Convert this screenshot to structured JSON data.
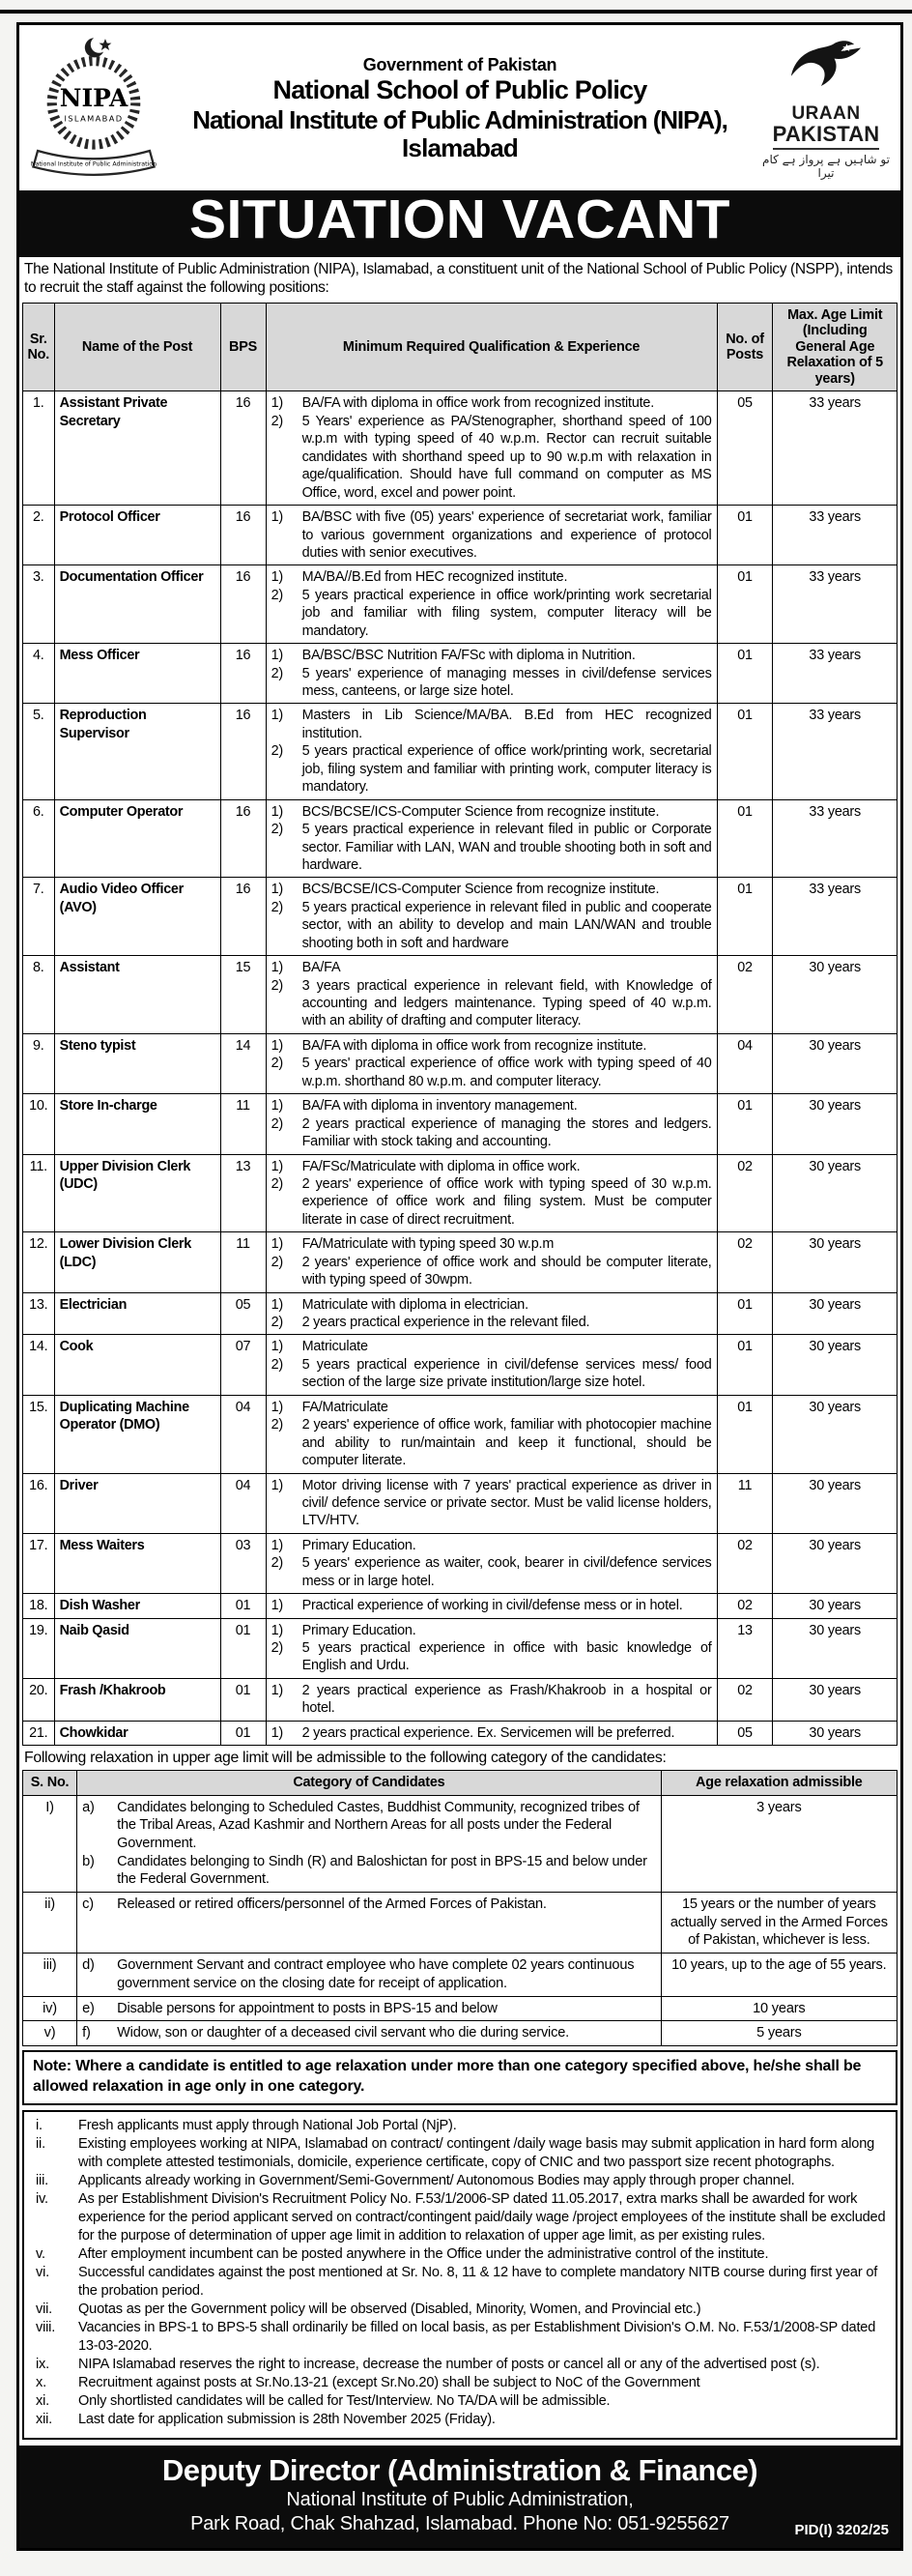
{
  "header": {
    "govt": "Government of Pakistan",
    "school": "National School of Public Policy",
    "institute_line1": "National Institute of Public Administration (NIPA),",
    "institute_line2": "Islamabad",
    "crest": {
      "acronym": "NIPA",
      "city": "ISLAMABAD",
      "ribbon": "National Institute of Public Administration"
    },
    "uraan": {
      "word1": "URAAN",
      "word2": "PAKISTAN",
      "urdu_tagline": "تو شاہیں ہے پرواز ہے کام تیرا"
    }
  },
  "banner": "SITUATION VACANT",
  "intro": "The National Institute of Public Administration (NIPA), Islamabad, a constituent unit of the National School of Public Policy (NSPP), intends to recruit the  staff against the following positions:",
  "jobs_table": {
    "headers": [
      "Sr. No.",
      "Name of the Post",
      "BPS",
      "Minimum Required Qualification & Experience",
      "No. of Posts",
      "Max. Age Limit (Including General Age Relaxation of 5 years)"
    ],
    "rows": [
      {
        "sr": "1.",
        "post": "Assistant Private Secretary",
        "bps": "16",
        "quals": [
          "BA/FA with diploma in office work from recognized institute.",
          "5 Years' experience as PA/Stenographer, shorthand speed of 100 w.p.m with typing speed of 40 w.p.m. Rector can recruit suitable candidates with shorthand speed up to 90 w.p.m with relaxation in age/qualification. Should have full command on computer as MS Office, word, excel and power point."
        ],
        "posts": "05",
        "age": "33 years"
      },
      {
        "sr": "2.",
        "post": "Protocol Officer",
        "bps": "16",
        "quals": [
          "BA/BSC with five (05) years' experience of secretariat work, familiar to various government organizations and experience of protocol duties with senior executives."
        ],
        "posts": "01",
        "age": "33 years"
      },
      {
        "sr": "3.",
        "post": "Documentation Officer",
        "bps": "16",
        "quals": [
          "MA/BA//B.Ed from HEC recognized institute.",
          "5 years practical experience in office work/printing work secretarial job and familiar with filing system, computer literacy will be mandatory."
        ],
        "posts": "01",
        "age": "33 years"
      },
      {
        "sr": "4.",
        "post": "Mess Officer",
        "bps": "16",
        "quals": [
          "BA/BSC/BSC Nutrition FA/FSc with diploma in Nutrition.",
          "5 years' experience of managing messes in civil/defense services mess, canteens, or large size hotel."
        ],
        "posts": "01",
        "age": "33 years"
      },
      {
        "sr": "5.",
        "post": "Reproduction Supervisor",
        "bps": "16",
        "quals": [
          "Masters in Lib Science/MA/BA. B.Ed from HEC recognized institution.",
          "5 years practical experience of office work/printing work, secretarial job, filing system and familiar with printing work, computer literacy is mandatory."
        ],
        "posts": "01",
        "age": "33 years"
      },
      {
        "sr": "6.",
        "post": "Computer Operator",
        "bps": "16",
        "quals": [
          "BCS/BCSE/ICS-Computer Science from recognize institute.",
          "5 years practical experience in relevant filed in public or Corporate sector. Familiar with LAN, WAN and trouble shooting both in soft and hardware."
        ],
        "posts": "01",
        "age": "33 years"
      },
      {
        "sr": "7.",
        "post": "Audio Video Officer (AVO)",
        "bps": "16",
        "quals": [
          "BCS/BCSE/ICS-Computer Science from recognize institute.",
          "5 years practical experience in relevant filed in public and cooperate sector, with an ability to develop and main LAN/WAN and trouble shooting both in soft and hardware"
        ],
        "posts": "01",
        "age": "33 years"
      },
      {
        "sr": "8.",
        "post": "Assistant",
        "bps": "15",
        "quals": [
          "BA/FA",
          "3 years practical experience in relevant field, with Knowledge of accounting and ledgers maintenance. Typing speed of 40 w.p.m. with an ability of drafting and computer literacy."
        ],
        "posts": "02",
        "age": "30 years"
      },
      {
        "sr": "9.",
        "post": "Steno typist",
        "bps": "14",
        "quals": [
          "BA/FA with diploma in office work from recognize institute.",
          "5 years' practical experience of office work with typing speed of 40 w.p.m. shorthand 80 w.p.m. and computer literacy."
        ],
        "posts": "04",
        "age": "30 years"
      },
      {
        "sr": "10.",
        "post": "Store In-charge",
        "bps": "11",
        "quals": [
          "BA/FA with diploma in inventory management.",
          "2 years practical experience of managing the stores and ledgers. Familiar with stock taking and accounting."
        ],
        "posts": "01",
        "age": "30 years"
      },
      {
        "sr": "11.",
        "post": "Upper Division Clerk (UDC)",
        "bps": "13",
        "quals": [
          "FA/FSc/Matriculate with diploma in office work.",
          "2 years' experience of office work with typing speed of 30 w.p.m. experience of office work and filing system. Must be computer literate in case of direct recruitment."
        ],
        "posts": "02",
        "age": "30 years"
      },
      {
        "sr": "12.",
        "post": "Lower Division Clerk (LDC)",
        "bps": "11",
        "quals": [
          "FA/Matriculate with typing speed 30 w.p.m",
          "2 years' experience of office work and should be computer literate, with typing speed of 30wpm."
        ],
        "posts": "02",
        "age": "30 years"
      },
      {
        "sr": "13.",
        "post": "Electrician",
        "bps": "05",
        "quals": [
          "Matriculate with diploma in electrician.",
          "2 years practical experience in the relevant filed."
        ],
        "posts": "01",
        "age": "30 years"
      },
      {
        "sr": "14.",
        "post": "Cook",
        "bps": "07",
        "quals": [
          "Matriculate",
          "5 years practical experience in civil/defense services mess/ food section of the large size private institution/large size hotel."
        ],
        "posts": "01",
        "age": "30 years"
      },
      {
        "sr": "15.",
        "post": "Duplicating Machine Operator (DMO)",
        "bps": "04",
        "quals": [
          "FA/Matriculate",
          "2 years' experience of office work, familiar with photocopier machine and ability to run/maintain and keep it functional, should be computer literate."
        ],
        "posts": "01",
        "age": "30 years"
      },
      {
        "sr": "16.",
        "post": "Driver",
        "bps": "04",
        "quals": [
          "Motor driving license with 7 years' practical experience as driver in civil/ defence service or private sector. Must be valid license holders, LTV/HTV."
        ],
        "posts": "11",
        "age": "30 years"
      },
      {
        "sr": "17.",
        "post": "Mess Waiters",
        "bps": "03",
        "quals": [
          "Primary Education.",
          "5 years' experience as waiter, cook, bearer in civil/defence services mess or in large hotel."
        ],
        "posts": "02",
        "age": "30 years"
      },
      {
        "sr": "18.",
        "post": "Dish Washer",
        "bps": "01",
        "quals": [
          "Practical experience of working in civil/defense mess or in hotel."
        ],
        "posts": "02",
        "age": "30 years"
      },
      {
        "sr": "19.",
        "post": "Naib Qasid",
        "bps": "01",
        "quals": [
          "Primary Education.",
          "5 years practical experience in office with basic knowledge of English and Urdu."
        ],
        "posts": "13",
        "age": "30 years"
      },
      {
        "sr": "20.",
        "post": "Frash /Khakroob",
        "bps": "01",
        "quals": [
          "2 years practical experience as Frash/Khakroob in a hospital or hotel."
        ],
        "posts": "02",
        "age": "30 years"
      },
      {
        "sr": "21.",
        "post": "Chowkidar",
        "bps": "01",
        "quals": [
          "2 years practical experience. Ex. Servicemen will be preferred."
        ],
        "posts": "05",
        "age": "30 years"
      }
    ]
  },
  "relaxation_intro": "Following relaxation in upper age limit will be admissible to the following category of the candidates:",
  "relaxation_table": {
    "headers": [
      "S. No.",
      "Category of Candidates",
      "Age relaxation admissible"
    ],
    "rows": [
      {
        "sn": "I)",
        "items": [
          {
            "letter": "a)",
            "text": "Candidates belonging to Scheduled Castes, Buddhist Community, recognized tribes of the Tribal Areas, Azad Kashmir and Northern Areas for all posts under the Federal Government."
          },
          {
            "letter": "b)",
            "text": "Candidates belonging to Sindh (R) and Baloshictan for post in BPS-15 and below under the Federal Government."
          }
        ],
        "relax": "3 years"
      },
      {
        "sn": "ii)",
        "items": [
          {
            "letter": "c)",
            "text": "Released or retired officers/personnel of the Armed Forces of Pakistan."
          }
        ],
        "relax": "15 years or the number of years actually served in the Armed Forces of Pakistan, whichever is less."
      },
      {
        "sn": "iii)",
        "items": [
          {
            "letter": "d)",
            "text": "Government Servant and contract employee who have complete 02 years continuous government service on the closing date for receipt of application."
          }
        ],
        "relax": "10 years, up to the age of 55 years."
      },
      {
        "sn": "iv)",
        "items": [
          {
            "letter": "e)",
            "text": "Disable persons for appointment to posts in BPS-15 and below"
          }
        ],
        "relax": "10 years"
      },
      {
        "sn": "v)",
        "items": [
          {
            "letter": "f)",
            "text": "Widow, son or daughter of a deceased civil servant who die during service."
          }
        ],
        "relax": "5 years"
      }
    ]
  },
  "note": "Note: Where a candidate is entitled to age relaxation under more than one category specified above, he/she shall be allowed relaxation in age only in one category.",
  "notes": [
    {
      "n": "i.",
      "text": "Fresh applicants must apply through National Job Portal (NjP)."
    },
    {
      "n": "ii.",
      "text": "Existing employees working at NIPA, Islamabad on contract/ contingent /daily wage basis may submit application in hard form along with complete attested testimonials, domicile, experience certificate, copy of CNIC and two passport size recent photographs."
    },
    {
      "n": "iii.",
      "text": "Applicants already working in Government/Semi-Government/ Autonomous Bodies may apply through proper channel."
    },
    {
      "n": "iv.",
      "text": "As per Establishment Division's Recruitment Policy No. F.53/1/2006-SP dated 11.05.2017, extra marks shall be awarded for work experience for the period applicant served on contract/contingent paid/daily wage /project employees of the institute shall be excluded for the purpose of determination of upper age limit in addition to relaxation of upper age limit, as per existing rules."
    },
    {
      "n": "v.",
      "text": "After employment incumbent can be posted anywhere in the Office under the administrative control of the institute."
    },
    {
      "n": "vi.",
      "text": "Successful candidates against the post mentioned at Sr. No. 8, 11 & 12 have to complete mandatory NITB course during first year of the probation period."
    },
    {
      "n": "vii.",
      "text": "Quotas as per the Government policy will be observed (Disabled, Minority, Women, and Provincial etc.)"
    },
    {
      "n": "viii.",
      "text": "Vacancies in BPS-1 to BPS-5 shall ordinarily be filled on local basis, as per Establishment Division's O.M. No. F.53/1/2008-SP dated 13-03-2020."
    },
    {
      "n": "ix.",
      "text": "NIPA Islamabad reserves the right to increase, decrease the number of posts or cancel all or any of the advertised post (s)."
    },
    {
      "n": "x.",
      "text": "Recruitment against posts at Sr.No.13-21 (except Sr.No.20) shall be subject to NoC of the Government"
    },
    {
      "n": "xi.",
      "text": "Only shortlisted candidates will be called for Test/Interview. No TA/DA will be admissible."
    },
    {
      "n": "xii.",
      "text": "Last date for application submission is 28th November 2025 (Friday)."
    }
  ],
  "footer": {
    "title": "Deputy Director (Administration & Finance)",
    "line2": "National Institute of Public Administration,",
    "line3": "Park Road, Chak Shahzad, Islamabad. Phone No: 051-9255627",
    "pid": "PID(I) 3202/25"
  },
  "colors": {
    "ink": "#0c0c0c",
    "header_bg": "#d8d8d8",
    "paper": "#ffffff"
  }
}
